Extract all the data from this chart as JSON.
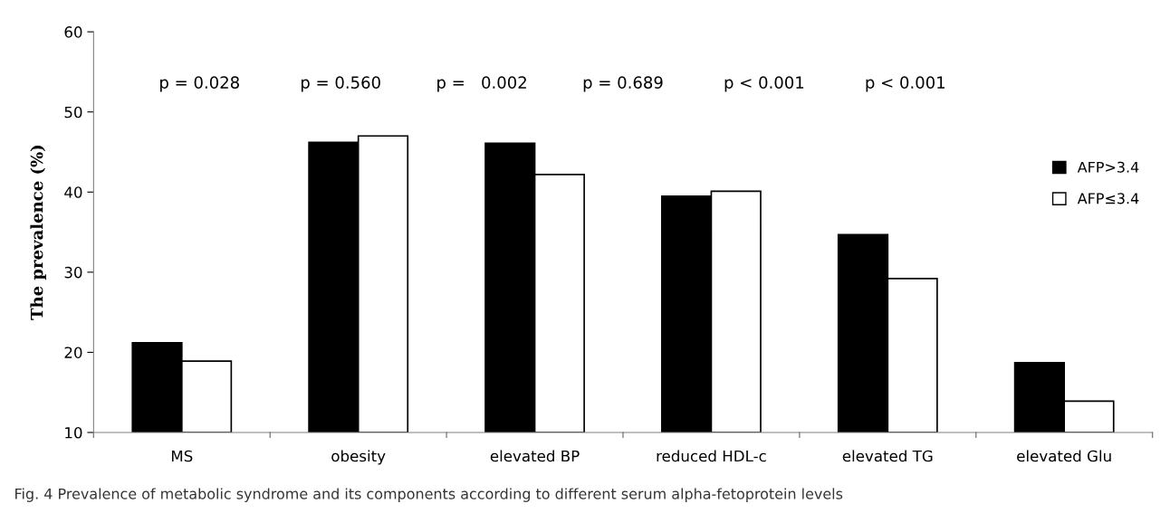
{
  "chart_data": {
    "type": "bar",
    "categories": [
      "MS",
      "obesity",
      "elevated BP",
      "reduced HDL-c",
      "elevated TG",
      "elevated Glu"
    ],
    "series": [
      {
        "name": "AFP>3.4",
        "color": "#000000",
        "values": [
          21.2,
          46.2,
          46.1,
          39.5,
          34.7,
          18.7
        ]
      },
      {
        "name": "AFP≤3.4",
        "color": "#ffffff",
        "values": [
          18.9,
          47.0,
          42.2,
          40.1,
          29.2,
          13.9
        ]
      }
    ],
    "ylabel": "The prevalence (%)",
    "ylim": [
      10,
      60
    ],
    "yticks": [
      10,
      20,
      30,
      40,
      50,
      60
    ],
    "annotations": [
      "p = 0.028",
      "p = 0.560",
      "p =   0.002",
      "p = 0.689",
      "p < 0.001",
      "p < 0.001",
      "Fig. 4 Prevalence of metabolic syndrome and its components according to different serum alpha-fetoprotein levels"
    ],
    "grid": false,
    "legend": "right"
  }
}
